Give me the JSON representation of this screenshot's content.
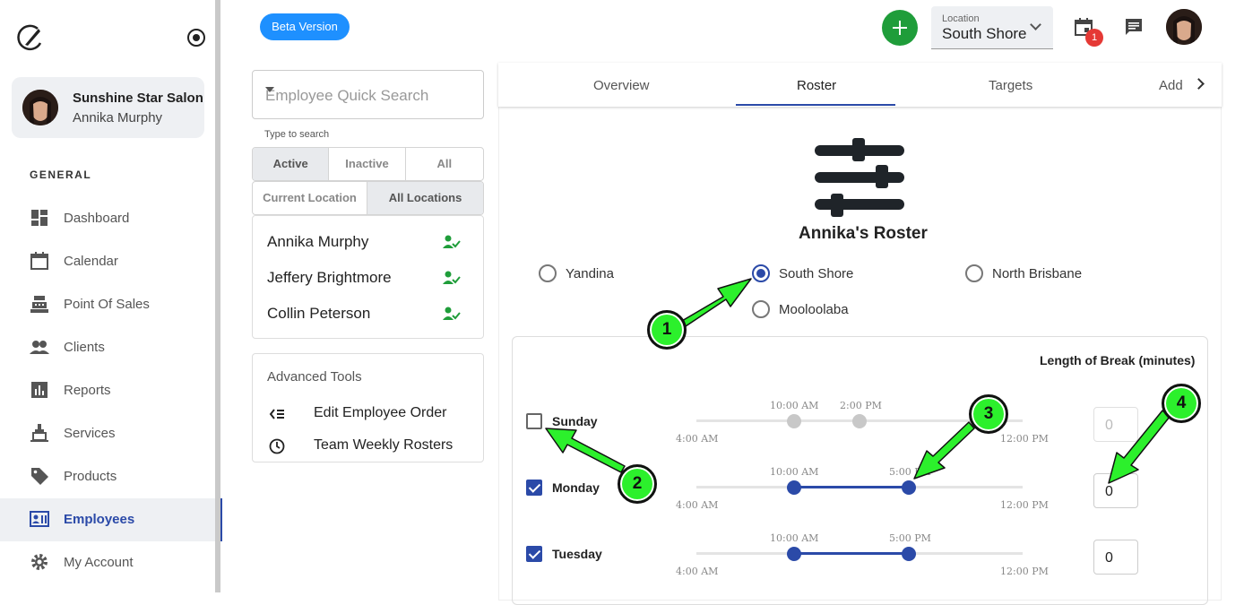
{
  "sidebar": {
    "salon_name": "Sunshine Star Salon",
    "user_name": "Annika Murphy",
    "section_title": "GENERAL",
    "items": [
      {
        "label": "Dashboard",
        "icon": "dashboard-icon"
      },
      {
        "label": "Calendar",
        "icon": "calendar-icon"
      },
      {
        "label": "Point Of Sales",
        "icon": "cash-register-icon"
      },
      {
        "label": "Clients",
        "icon": "people-icon"
      },
      {
        "label": "Reports",
        "icon": "bar-chart-icon"
      },
      {
        "label": "Services",
        "icon": "service-bell-icon"
      },
      {
        "label": "Products",
        "icon": "tag-icon"
      },
      {
        "label": "Employees",
        "icon": "employee-badge-icon",
        "active": true
      },
      {
        "label": "My Account",
        "icon": "gear-icon"
      }
    ]
  },
  "header": {
    "beta_label": "Beta Version",
    "location_label": "Location",
    "location_value": "South Shore",
    "notification_count": "1"
  },
  "employees": {
    "search_placeholder": "Employee Quick Search",
    "search_hint": "Type to search",
    "status_filters": [
      "Active",
      "Inactive",
      "All"
    ],
    "location_filters": [
      "Current Location",
      "All Locations"
    ],
    "list": [
      "Annika Murphy",
      "Jeffery Brightmore",
      "Collin Peterson"
    ],
    "tools_title": "Advanced Tools",
    "tools": [
      "Edit Employee Order",
      "Team Weekly Rosters"
    ]
  },
  "tabs": [
    "Overview",
    "Roster",
    "Targets",
    "Add"
  ],
  "roster": {
    "title": "Annika's Roster",
    "locations": [
      "Yandina",
      "South Shore",
      "North Brisbane",
      "Mooloolaba"
    ],
    "selected_location": "South Shore",
    "break_label": "Length of Break (minutes)",
    "range_min": "4:00 AM",
    "range_max": "12:00 PM",
    "days": [
      {
        "name": "Sunday",
        "enabled": false,
        "start": "10:00 AM",
        "end": "2:00 PM",
        "break": "0"
      },
      {
        "name": "Monday",
        "enabled": true,
        "start": "10:00 AM",
        "end": "5:00 PM",
        "break": "0"
      },
      {
        "name": "Tuesday",
        "enabled": true,
        "start": "10:00 AM",
        "end": "5:00 PM",
        "break": "0"
      }
    ]
  },
  "callouts": [
    "1",
    "2",
    "3",
    "4"
  ],
  "colors": {
    "accent": "#2b4aa8",
    "callout": "#2cf02c",
    "beta": "#1e90ff",
    "add": "#1f9d3a"
  }
}
